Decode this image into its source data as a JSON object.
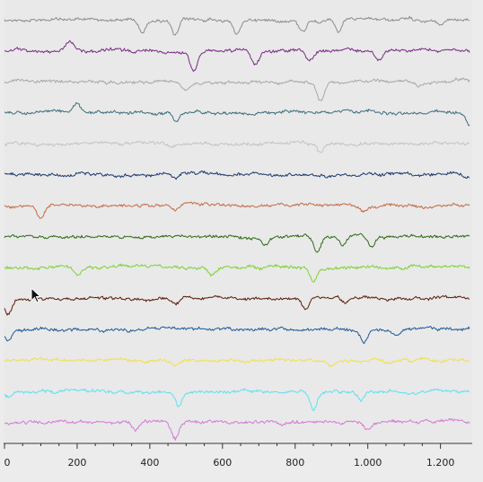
{
  "chart_data": {
    "type": "line",
    "title": "",
    "xlabel": "",
    "ylabel": "",
    "xlim": [
      0,
      1280
    ],
    "grid": false,
    "legend": "none",
    "x_ticks": [
      0,
      200,
      400,
      600,
      800,
      1000,
      1200
    ],
    "x_tick_labels": [
      "0",
      "200",
      "400",
      "600",
      "800",
      "1.000",
      "1.200"
    ],
    "series": [
      {
        "color": "#8c8c8c",
        "events": [
          [
            380,
            14
          ],
          [
            470,
            18
          ],
          [
            640,
            16
          ],
          [
            820,
            12
          ],
          [
            920,
            14
          ],
          [
            1200,
            6
          ]
        ]
      },
      {
        "color": "#7a2a86",
        "events": [
          [
            180,
            -10
          ],
          [
            520,
            22
          ],
          [
            690,
            16
          ],
          [
            840,
            10
          ],
          [
            1030,
            10
          ]
        ]
      },
      {
        "color": "#a9a9a9",
        "events": [
          [
            870,
            20
          ],
          [
            500,
            6
          ],
          [
            1140,
            5
          ]
        ]
      },
      {
        "color": "#3e6f7c",
        "events": [
          [
            200,
            -10
          ],
          [
            470,
            8
          ],
          [
            1280,
            14
          ]
        ]
      },
      {
        "color": "#c4c4c4",
        "events": [
          [
            870,
            10
          ],
          [
            460,
            5
          ]
        ]
      },
      {
        "color": "#1c3a6e",
        "events": [
          [
            470,
            6
          ],
          [
            1270,
            4
          ]
        ]
      },
      {
        "color": "#c46b48",
        "events": [
          [
            100,
            16
          ],
          [
            470,
            6
          ],
          [
            990,
            4
          ]
        ]
      },
      {
        "color": "#2f6b16",
        "events": [
          [
            860,
            18
          ],
          [
            930,
            10
          ],
          [
            1010,
            12
          ],
          [
            720,
            8
          ]
        ]
      },
      {
        "color": "#7fd13a",
        "events": [
          [
            850,
            16
          ],
          [
            570,
            8
          ],
          [
            200,
            8
          ]
        ]
      },
      {
        "color": "#5a1c0a",
        "events": [
          [
            10,
            18
          ],
          [
            830,
            14
          ],
          [
            470,
            8
          ],
          [
            940,
            6
          ]
        ]
      },
      {
        "color": "#1f5a99",
        "events": [
          [
            10,
            14
          ],
          [
            990,
            14
          ],
          [
            1080,
            8
          ]
        ]
      },
      {
        "color": "#f2e14a",
        "events": [
          [
            470,
            6
          ],
          [
            900,
            5
          ],
          [
            1060,
            4
          ]
        ]
      },
      {
        "color": "#5ee0f0",
        "events": [
          [
            480,
            16
          ],
          [
            850,
            18
          ],
          [
            980,
            10
          ],
          [
            10,
            8
          ]
        ]
      },
      {
        "color": "#d37ad6",
        "events": [
          [
            470,
            18
          ],
          [
            360,
            8
          ],
          [
            1000,
            10
          ]
        ]
      }
    ]
  },
  "colors": {
    "background": "#ececec",
    "plot_area": "#e9e9e9",
    "axis": "#333333"
  }
}
